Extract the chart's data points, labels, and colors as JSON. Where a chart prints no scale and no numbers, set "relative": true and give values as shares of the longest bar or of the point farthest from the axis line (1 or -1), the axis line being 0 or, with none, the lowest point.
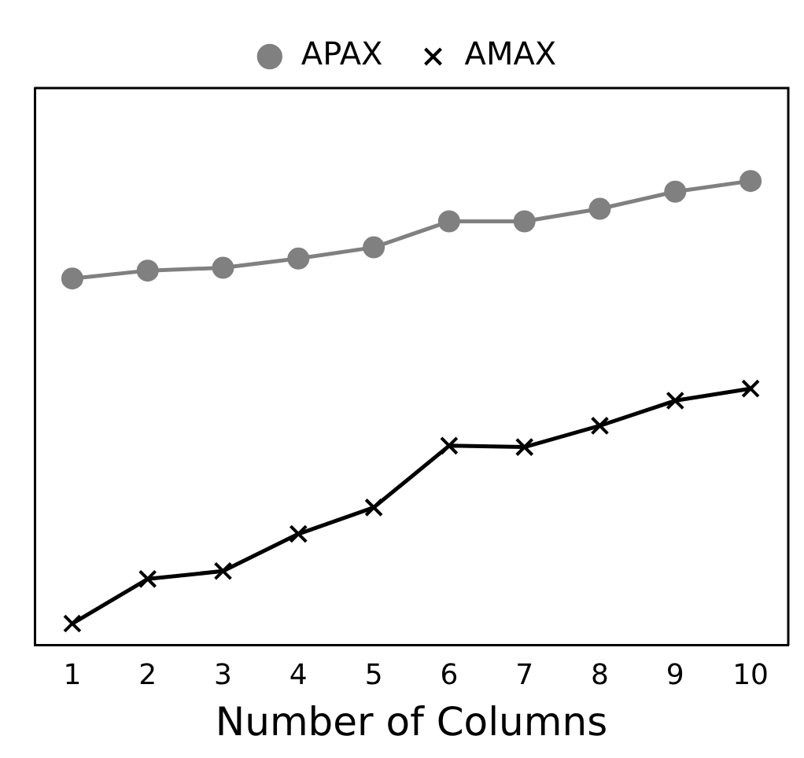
{
  "chart_data": {
    "type": "line",
    "xlabel": "Number of Columns",
    "categories": [
      "1",
      "2",
      "3",
      "4",
      "5",
      "6",
      "7",
      "8",
      "9",
      "10"
    ],
    "relative": true,
    "series": [
      {
        "name": "APAX",
        "color": "#808080",
        "marker": "circle",
        "values": [
          0.79,
          0.807,
          0.813,
          0.833,
          0.857,
          0.913,
          0.913,
          0.94,
          0.977,
          1
        ]
      },
      {
        "name": "AMAX",
        "color": "#000000",
        "marker": "cross",
        "values": [
          0.047,
          0.143,
          0.16,
          0.24,
          0.297,
          0.43,
          0.427,
          0.473,
          0.527,
          0.553
        ]
      }
    ],
    "legend": "top",
    "line_style": "solid"
  }
}
